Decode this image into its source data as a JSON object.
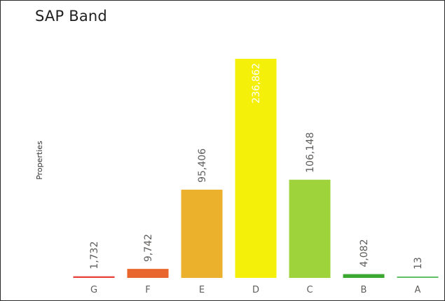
{
  "chart_data": {
    "type": "bar",
    "title": "SAP Band",
    "xlabel": "",
    "ylabel": "Properties",
    "categories": [
      "G",
      "F",
      "E",
      "D",
      "C",
      "B",
      "A"
    ],
    "values": [
      1732,
      9742,
      95406,
      236862,
      106148,
      4082,
      13
    ],
    "value_labels": [
      "1,732",
      "9,742",
      "95,406",
      "236,862",
      "106,148",
      "4,082",
      "13"
    ],
    "colors": [
      "#e8423a",
      "#e8662b",
      "#ebb12c",
      "#f5f00a",
      "#9fd33c",
      "#3aa82f",
      "#5cbf66"
    ],
    "ylim": [
      0,
      245000
    ],
    "grid": false,
    "legend": "none"
  }
}
